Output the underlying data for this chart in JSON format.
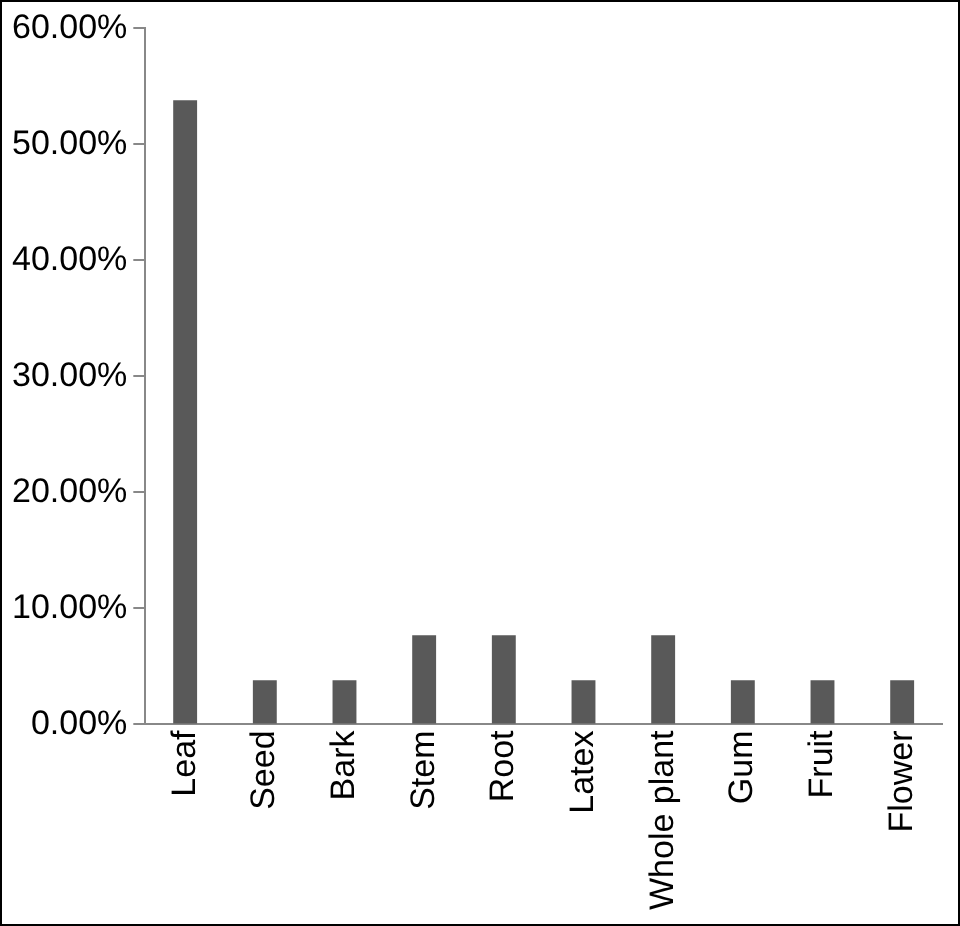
{
  "chart_data": {
    "type": "bar",
    "categories": [
      "Leaf",
      "Seed",
      "Bark",
      "Stem",
      "Root",
      "Latex",
      "Whole plant",
      "Gum",
      "Fruit",
      "Flower"
    ],
    "values": [
      53.8,
      3.8,
      3.8,
      7.7,
      7.7,
      3.8,
      7.7,
      3.8,
      3.8,
      3.8
    ],
    "color": "#595959",
    "ylim": [
      0,
      60
    ],
    "yticks": [
      {
        "value": 0,
        "label": "0.00%"
      },
      {
        "value": 10,
        "label": "10.00%"
      },
      {
        "value": 20,
        "label": "20.00%"
      },
      {
        "value": 30,
        "label": "30.00%"
      },
      {
        "value": 40,
        "label": "40.00%"
      },
      {
        "value": 50,
        "label": "50.00%"
      },
      {
        "value": 60,
        "label": "60.00%"
      }
    ],
    "grid": false,
    "legend": false
  }
}
